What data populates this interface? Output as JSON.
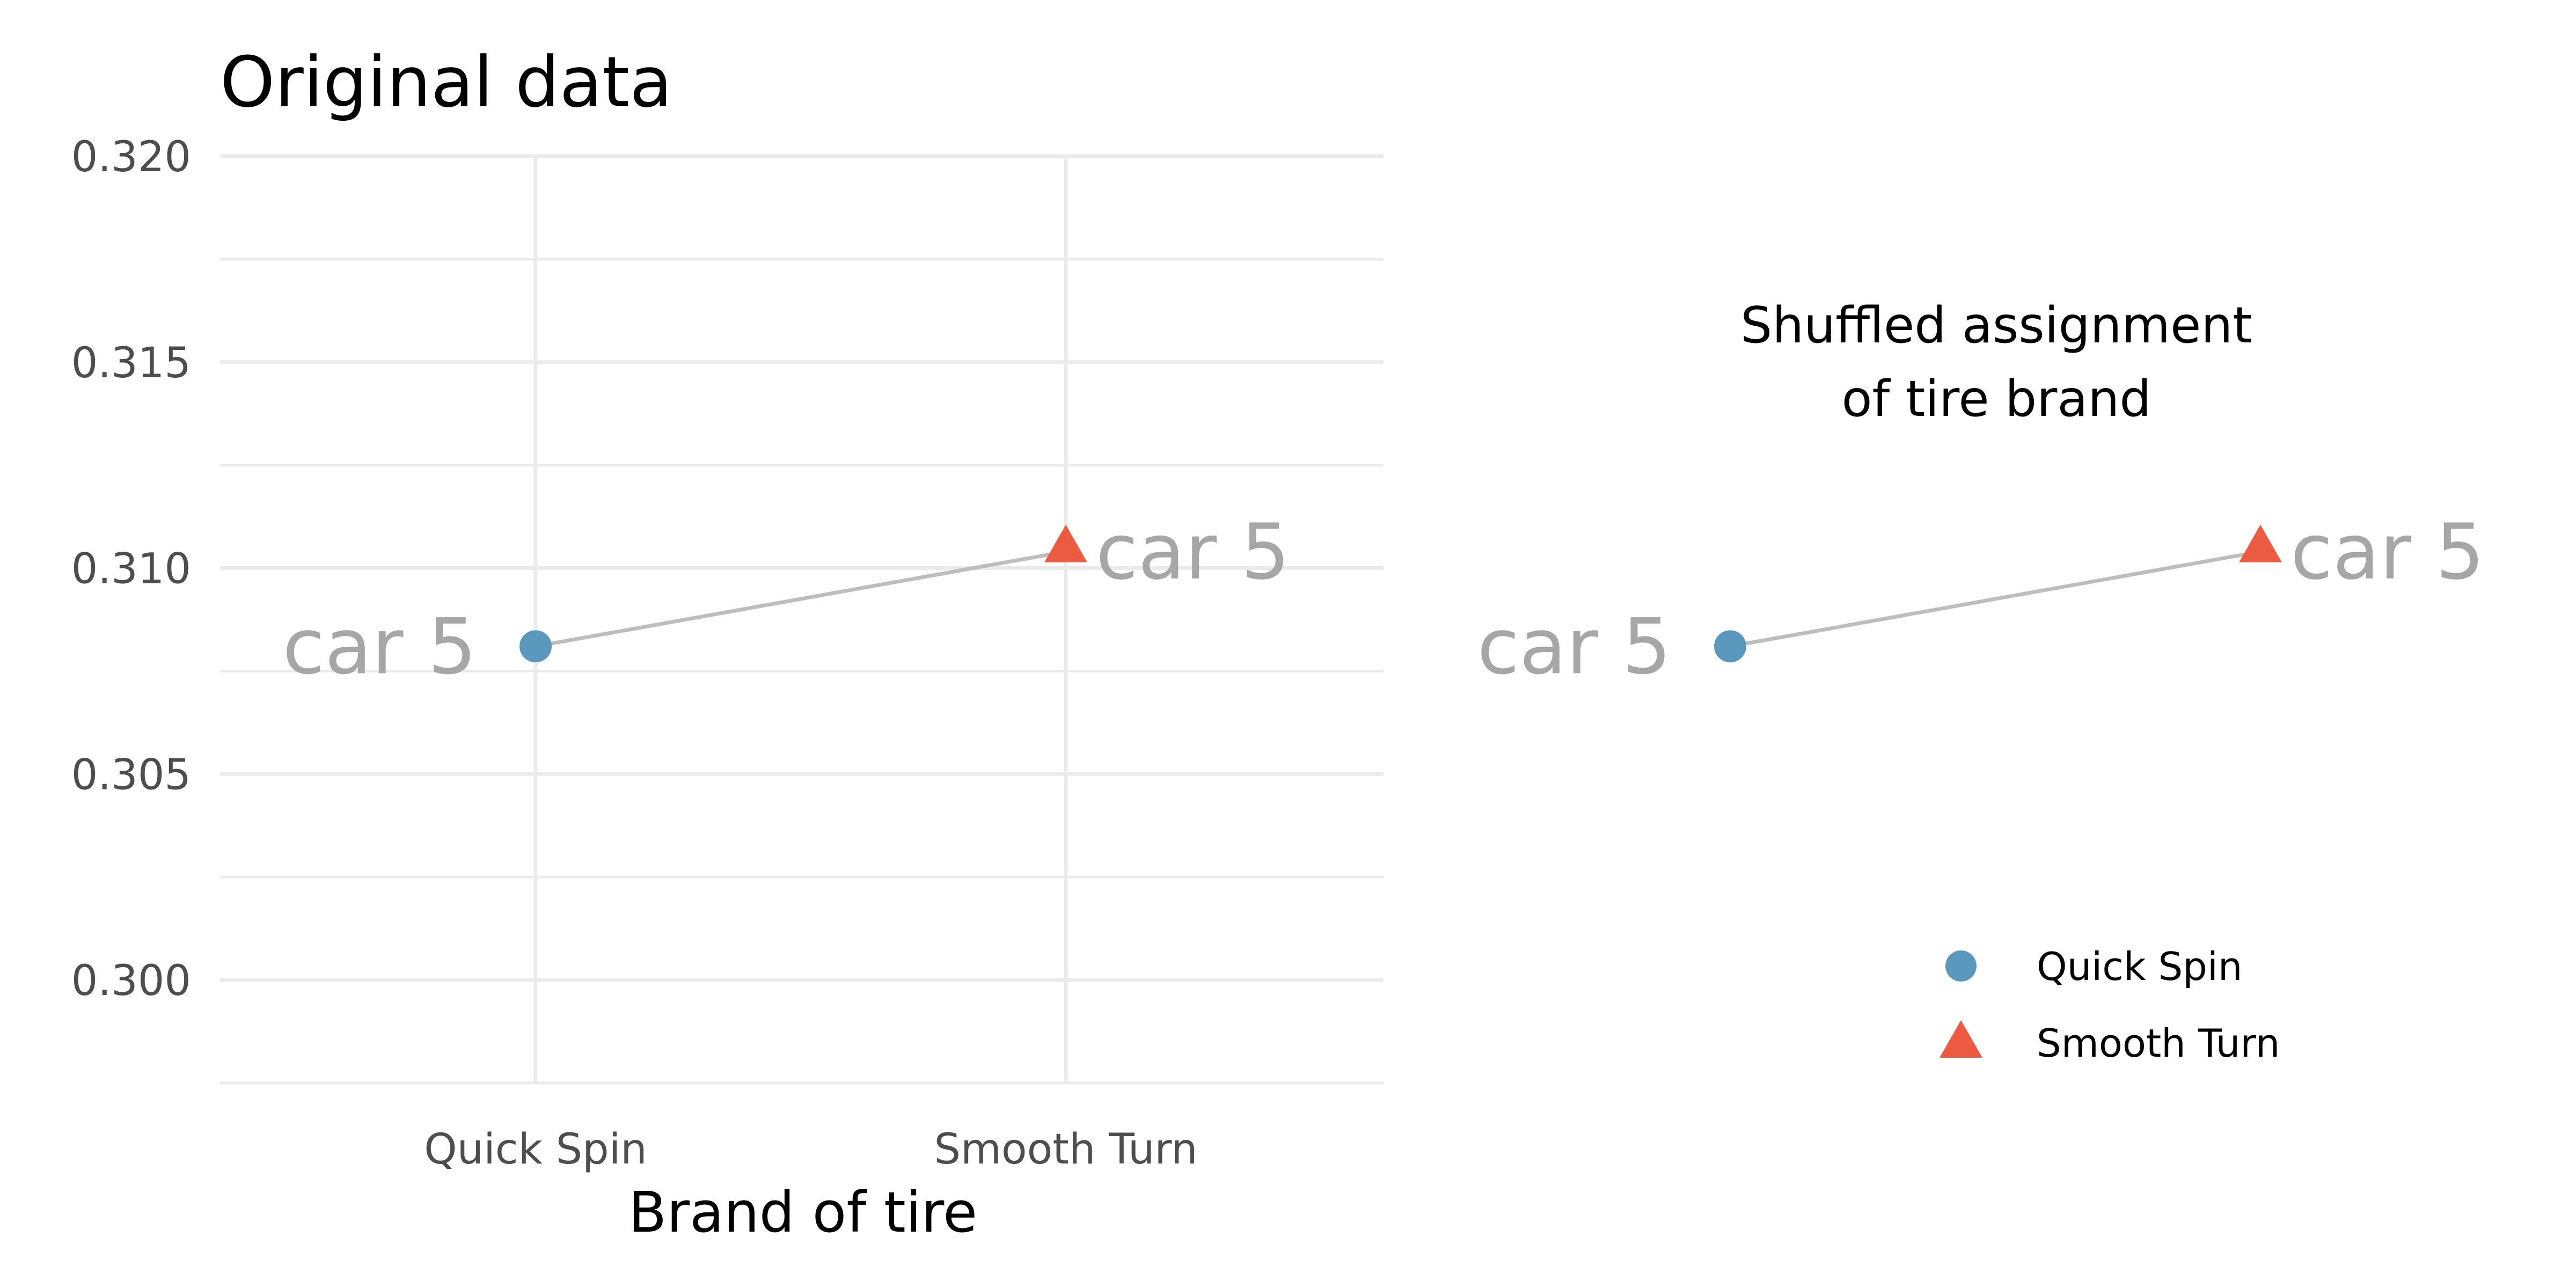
{
  "colors": {
    "quick_spin": "#5a97bc",
    "smooth_turn": "#ec5a41",
    "connector": "#bdbdbd",
    "point_label": "#a6a6a6"
  },
  "chart_data": [
    {
      "type": "line",
      "title": "Original data",
      "xlabel": "Brand of tire",
      "ylabel": "",
      "categories": [
        "Quick Spin",
        "Smooth Turn"
      ],
      "ylim": [
        0.2975,
        0.32
      ],
      "yticks": [
        "0.300",
        "0.305",
        "0.310",
        "0.315",
        "0.320"
      ],
      "grid": true,
      "points": [
        {
          "category": "Quick Spin",
          "value": 0.3081,
          "label": "car 5",
          "shape": "circle"
        },
        {
          "category": "Smooth Turn",
          "value": 0.3104,
          "label": "car 5",
          "shape": "triangle"
        }
      ]
    },
    {
      "type": "line",
      "title": "Shuffled assignment\nof tire brand",
      "title_lines": [
        "Shuffled assignment",
        "of tire brand"
      ],
      "grid": false,
      "ylim": [
        0.2975,
        0.32
      ],
      "points": [
        {
          "category": "Quick Spin",
          "value": 0.3081,
          "label": "car 5",
          "shape": "circle"
        },
        {
          "category": "Smooth Turn",
          "value": 0.3104,
          "label": "car 5",
          "shape": "triangle"
        }
      ],
      "legend": {
        "placement": "bottom-right",
        "entries": [
          {
            "name": "Quick Spin",
            "shape": "circle"
          },
          {
            "name": "Smooth Turn",
            "shape": "triangle"
          }
        ]
      }
    }
  ]
}
